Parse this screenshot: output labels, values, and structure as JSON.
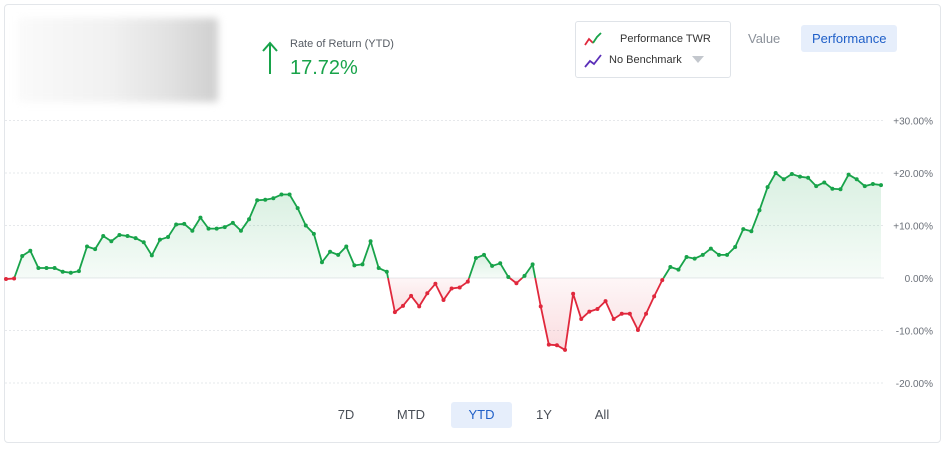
{
  "header": {
    "return_label": "Rate of Return (YTD)",
    "return_value": "17.72%",
    "return_color": "#18a34a"
  },
  "legend": {
    "items": [
      {
        "label": "Performance TWR",
        "icon": "performance-line-icon"
      },
      {
        "label": "No Benchmark",
        "icon": "benchmark-line-icon",
        "dropdown": true
      }
    ]
  },
  "view_toggle": {
    "options": [
      "Value",
      "Performance"
    ],
    "selected": "Performance"
  },
  "range_selector": {
    "options": [
      "7D",
      "MTD",
      "YTD",
      "1Y",
      "All"
    ],
    "selected": "YTD"
  },
  "chart_data": {
    "type": "area",
    "title": "",
    "xlabel": "",
    "ylabel": "",
    "y_tick_labels": [
      "+30.00%",
      "+20.00%",
      "+10.00%",
      "0.00%",
      "-10.00%",
      "-20.00%"
    ],
    "y_ticks": [
      30,
      20,
      10,
      0,
      -10,
      -20
    ],
    "ylim": [
      -20,
      30
    ],
    "grid": true,
    "positive_color": "#18a34a",
    "negative_color": "#e0283c",
    "series": [
      {
        "values": [
          -0.2,
          -0.1,
          4.2,
          5.2,
          1.9,
          1.9,
          1.9,
          1.2,
          1.0,
          1.3,
          6.0,
          5.5,
          8.0,
          7.0,
          8.2,
          8.0,
          7.6,
          6.8,
          4.3,
          7.3,
          7.8,
          10.2,
          10.3,
          9.0,
          11.5,
          9.4,
          9.4,
          9.7,
          10.5,
          9.0,
          11.2,
          14.8,
          14.9,
          15.2,
          15.9,
          15.9,
          13.3,
          10.0,
          8.4,
          3.0,
          5.0,
          4.4,
          6.0,
          2.4,
          2.6,
          7.0,
          1.9,
          1.2,
          -6.5,
          -5.3,
          -3.4,
          -5.4,
          -2.9,
          -1.1,
          -4.2,
          -2.0,
          -1.8,
          -0.7,
          3.8,
          4.4,
          2.3,
          2.8,
          0.2,
          -1.0,
          0.4,
          2.6,
          -5.4,
          -12.7,
          -12.8,
          -13.7,
          -3.0,
          -7.8,
          -6.4,
          -5.9,
          -4.4,
          -7.8,
          -6.8,
          -6.8,
          -9.9,
          -6.8,
          -3.5,
          -0.4,
          2.1,
          1.6,
          4.0,
          3.7,
          4.4,
          5.6,
          4.4,
          4.4,
          5.9,
          9.3,
          8.9,
          12.9,
          17.3,
          20.0,
          18.8,
          19.8,
          19.3,
          19.1,
          17.5,
          18.2,
          17.0,
          16.9,
          19.7,
          18.8,
          17.5,
          17.9,
          17.7
        ]
      }
    ]
  }
}
